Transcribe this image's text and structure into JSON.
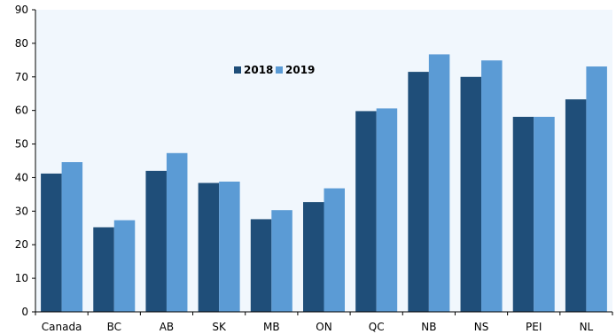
{
  "chart_data": {
    "type": "bar",
    "categories": [
      "Canada",
      "BC",
      "AB",
      "SK",
      "MB",
      "ON",
      "QC",
      "NB",
      "NS",
      "PEI",
      "NL"
    ],
    "series": [
      {
        "name": "2018",
        "color": "#1f4e79",
        "values": [
          41.2,
          25.2,
          42.0,
          38.4,
          27.6,
          32.7,
          59.8,
          71.5,
          70.0,
          58.1,
          63.3
        ]
      },
      {
        "name": "2019",
        "color": "#5b9bd5",
        "values": [
          44.6,
          27.3,
          47.3,
          38.8,
          30.3,
          36.8,
          60.6,
          76.7,
          74.9,
          58.1,
          73.1
        ]
      }
    ],
    "ylim": [
      0,
      90
    ],
    "yticks": [
      0,
      10,
      20,
      30,
      40,
      50,
      60,
      70,
      80,
      90
    ],
    "grid": false,
    "legend": "top-center",
    "plot_background": "#f1f7fd",
    "axis_color": "#000000"
  }
}
